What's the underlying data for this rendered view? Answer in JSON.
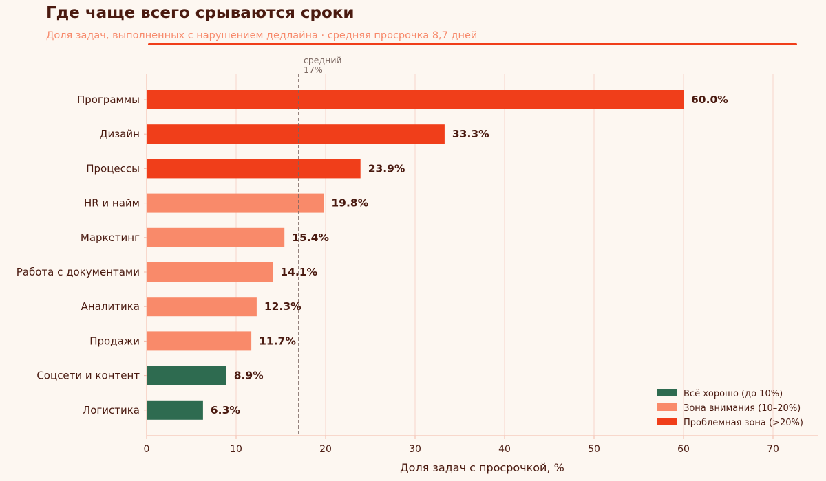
{
  "chart_data": {
    "type": "bar",
    "orientation": "horizontal",
    "title": "Где чаще всего срываются сроки",
    "subtitle": "Доля задач, выполненных с нарушением дедлайна · средняя просрочка 8,7 дней",
    "xlabel": "Доля задач с просрочкой, %",
    "ylabel": "",
    "xlim": [
      0,
      75
    ],
    "xticks": [
      0,
      10,
      20,
      30,
      40,
      50,
      60,
      70
    ],
    "grid": "vertical",
    "categories": [
      "Программы",
      "Дизайн",
      "Процессы",
      "HR и найм",
      "Маркетинг",
      "Работа с документами",
      "Аналитика",
      "Продажи",
      "Соцсети и контент",
      "Логистика"
    ],
    "values": [
      60.0,
      33.3,
      23.9,
      19.8,
      15.4,
      14.1,
      12.3,
      11.7,
      8.9,
      6.3
    ],
    "labels": [
      "60.0%",
      "33.3%",
      "23.9%",
      "19.8%",
      "15.4%",
      "14.1%",
      "12.3%",
      "11.7%",
      "8.9%",
      "6.3%"
    ],
    "zones": [
      2,
      2,
      2,
      1,
      1,
      1,
      1,
      1,
      0,
      0
    ],
    "reference_line": {
      "value": 17,
      "label_line1": "средний",
      "label_line2": "17%"
    },
    "legend": {
      "placement": "bottom-right",
      "entries": [
        "Всё хорошо (до 10%)",
        "Зона внимания (10–20%)",
        "Проблемная зона (>20%)"
      ]
    },
    "colors": [
      "#2e6b50",
      "#f98a6a",
      "#f03e1a"
    ]
  }
}
